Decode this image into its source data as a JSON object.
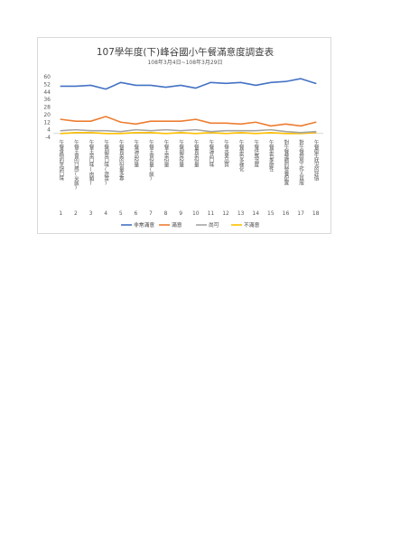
{
  "chart_data": {
    "type": "line",
    "title": "107學年度(下)峰谷國小午餐滿意度調查表",
    "subtitle": "108年3月4日~108年3月29日",
    "xlabel": "",
    "ylabel": "",
    "ylim": [
      -4,
      60
    ],
    "yticks": [
      -4,
      4,
      12,
      20,
      28,
      36,
      44,
      52,
      60
    ],
    "grid": false,
    "legend_position": "bottom",
    "x": [
      1,
      2,
      3,
      4,
      5,
      6,
      7,
      8,
      9,
      10,
      11,
      12,
      13,
      14,
      15,
      16,
      17,
      18
    ],
    "categories": [
      "午餐食物的烹調口味",
      "午餐主食的口感(米飯)",
      "午餐主菜口味(肉類)",
      "午餐副菜口味(蔬菜)",
      "午餐青菜的份量多寡",
      "午餐湯品份量",
      "午餐主食份量(飯)",
      "午餐主菜份量",
      "午餐副菜份量",
      "午餐青菜份量",
      "午餐湯品口味",
      "午餐水果品質",
      "午餐菜色多樣化",
      "午餐供應溫度",
      "午餐菜色季節性",
      "對午餐整體的營養配置",
      "對午餐廚房工作人員服",
      "午餐衛生狀況的評價"
    ],
    "series": [
      {
        "name": "非常滿意",
        "color": "#4472c4",
        "values": [
          50,
          50,
          51,
          47,
          54,
          51,
          51,
          49,
          51,
          48,
          54,
          53,
          54,
          51,
          54,
          55,
          58,
          53
        ]
      },
      {
        "name": "滿意",
        "color": "#ed7d31",
        "values": [
          15,
          13,
          13,
          18,
          12,
          10,
          13,
          13,
          13,
          15,
          11,
          11,
          10,
          12,
          8,
          10,
          8,
          12
        ]
      },
      {
        "name": "尚可",
        "color": "#a5a5a5",
        "values": [
          3,
          4,
          3,
          3,
          2,
          4,
          3,
          4,
          3,
          4,
          2,
          3,
          3,
          3,
          4,
          2,
          1,
          2
        ]
      },
      {
        "name": "不滿意",
        "color": "#ffc000",
        "values": [
          0,
          1,
          1,
          0,
          0,
          1,
          1,
          0,
          1,
          0,
          1,
          0,
          1,
          0,
          1,
          0,
          0,
          1
        ]
      }
    ]
  }
}
